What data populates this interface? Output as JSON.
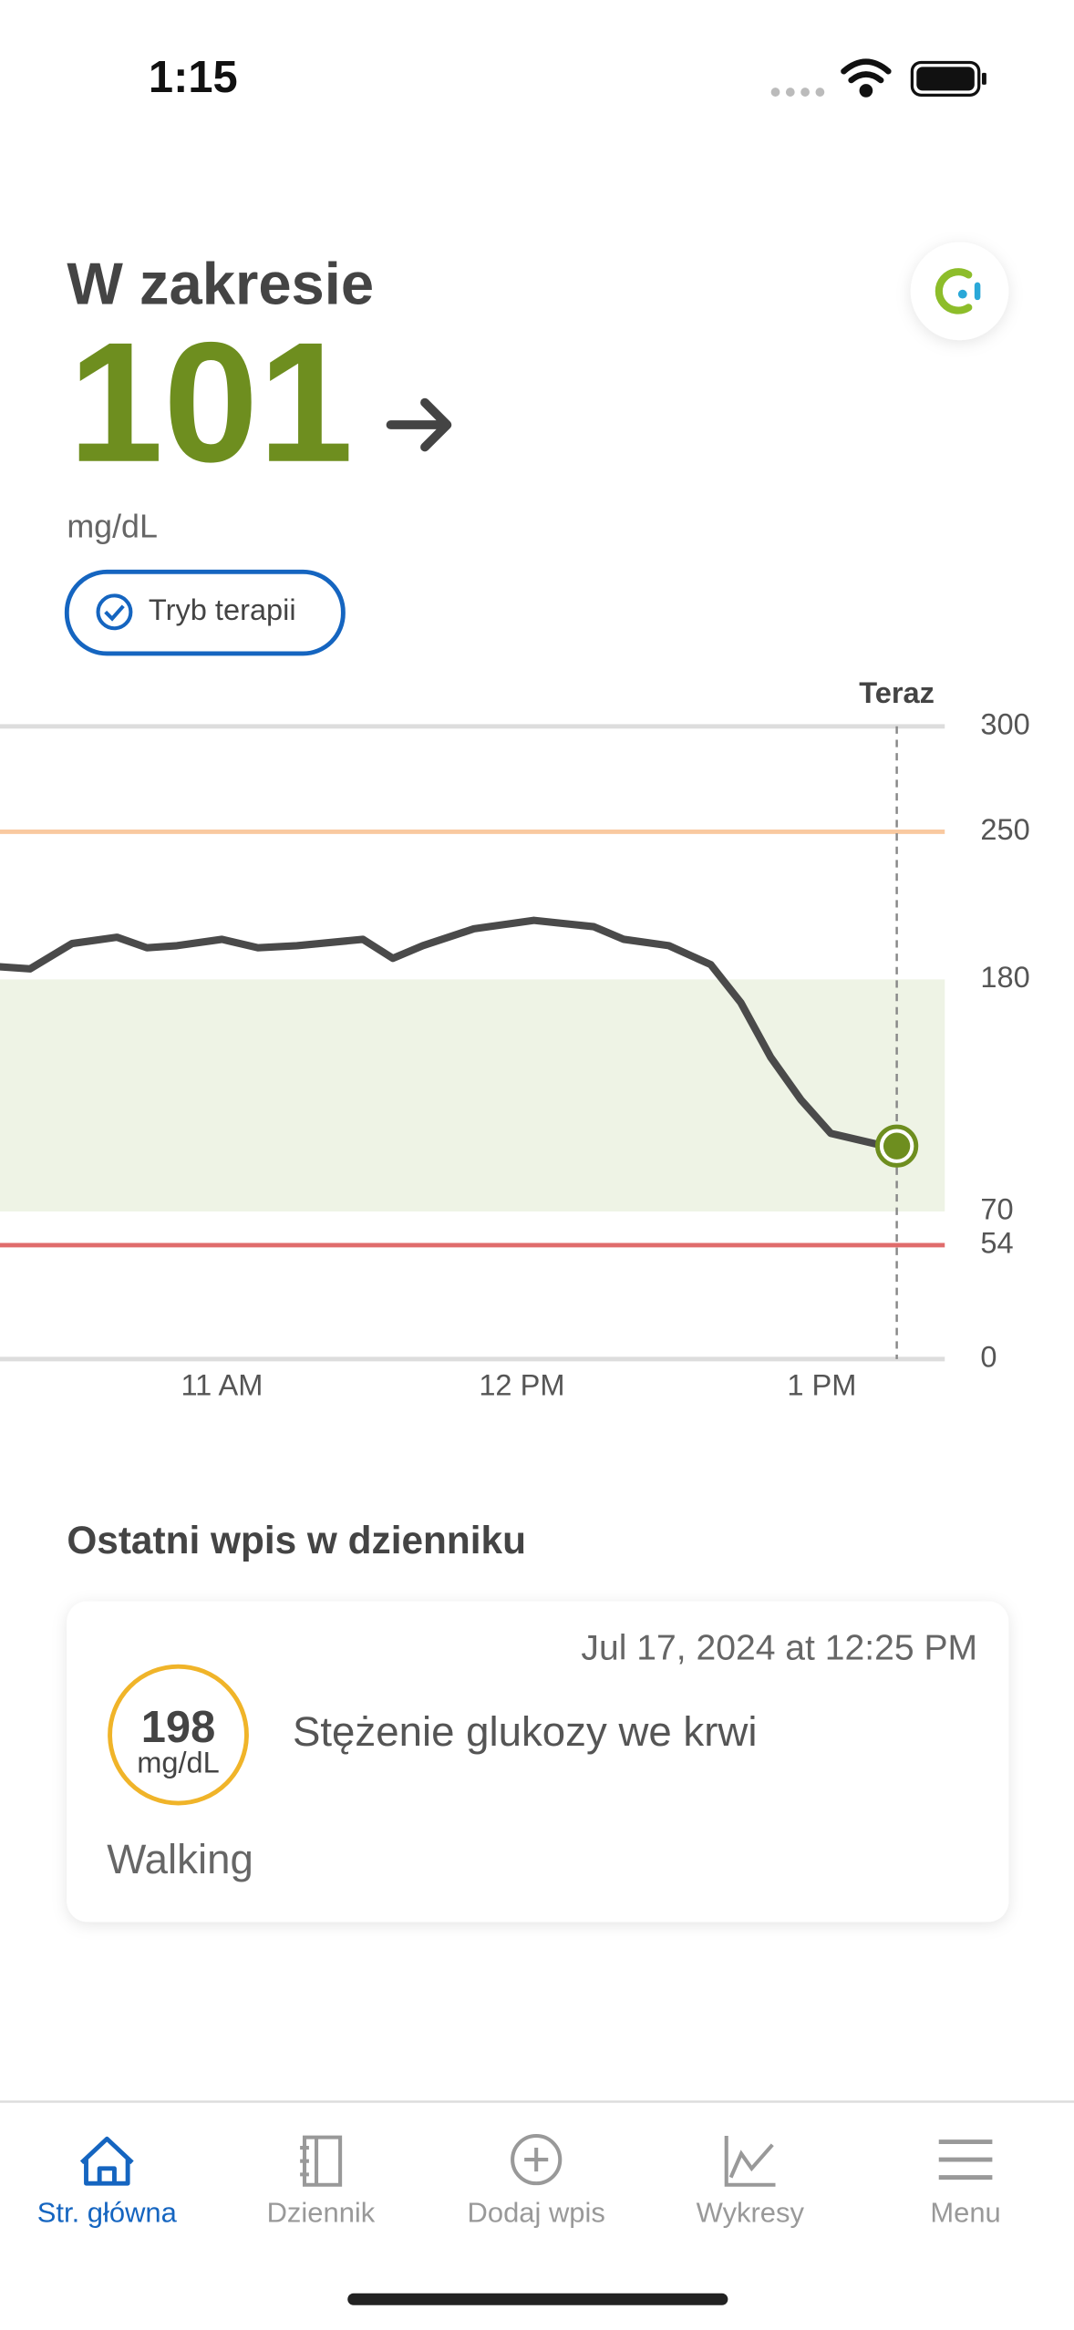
{
  "status_bar": {
    "time": "1:15"
  },
  "header": {
    "status": "W zakresie",
    "reading": "101",
    "unit": "mg/dL",
    "mode_badge": "Tryb terapii"
  },
  "chart_data": {
    "type": "line",
    "color": "#4a4a4a",
    "marker_color": "#6e8e1f",
    "now_label": "Teraz",
    "x": [
      10.26,
      10.36,
      10.5,
      10.65,
      10.75,
      10.85,
      11.0,
      11.12,
      11.25,
      11.47,
      11.57,
      11.67,
      11.84,
      12.04,
      12.24,
      12.34,
      12.49,
      12.63,
      12.73,
      12.83,
      12.93,
      13.03,
      13.18,
      13.25
    ],
    "values": [
      186,
      185,
      197,
      200,
      195,
      196,
      199,
      195,
      196,
      199,
      190,
      196,
      204,
      208,
      205,
      199,
      196,
      187,
      169,
      143,
      123,
      107,
      102,
      101
    ],
    "xlim": [
      10.26,
      13.41
    ],
    "xticks": [
      {
        "value": 11,
        "label": "11 AM"
      },
      {
        "value": 12,
        "label": "12 PM"
      },
      {
        "value": 13,
        "label": "1 PM"
      }
    ],
    "ylim": [
      0,
      300
    ],
    "yticks": [
      0,
      54,
      70,
      180,
      250,
      300
    ],
    "target_range": [
      70,
      180
    ],
    "target_color": "#eef3e5",
    "high_alert": 250,
    "high_color": "#f9c9a0",
    "low_alert": 54,
    "low_color": "#e06c6c"
  },
  "log": {
    "title": "Ostatni wpis w dzienniku",
    "date": "Jul 17, 2024 at 12:25 PM",
    "value": "198",
    "unit": "mg/dL",
    "description": "Stężenie glukozy we krwi",
    "note": "Walking"
  },
  "tabs": [
    "Str. główna",
    "Dziennik",
    "Dodaj wpis",
    "Wykresy",
    "Menu"
  ]
}
